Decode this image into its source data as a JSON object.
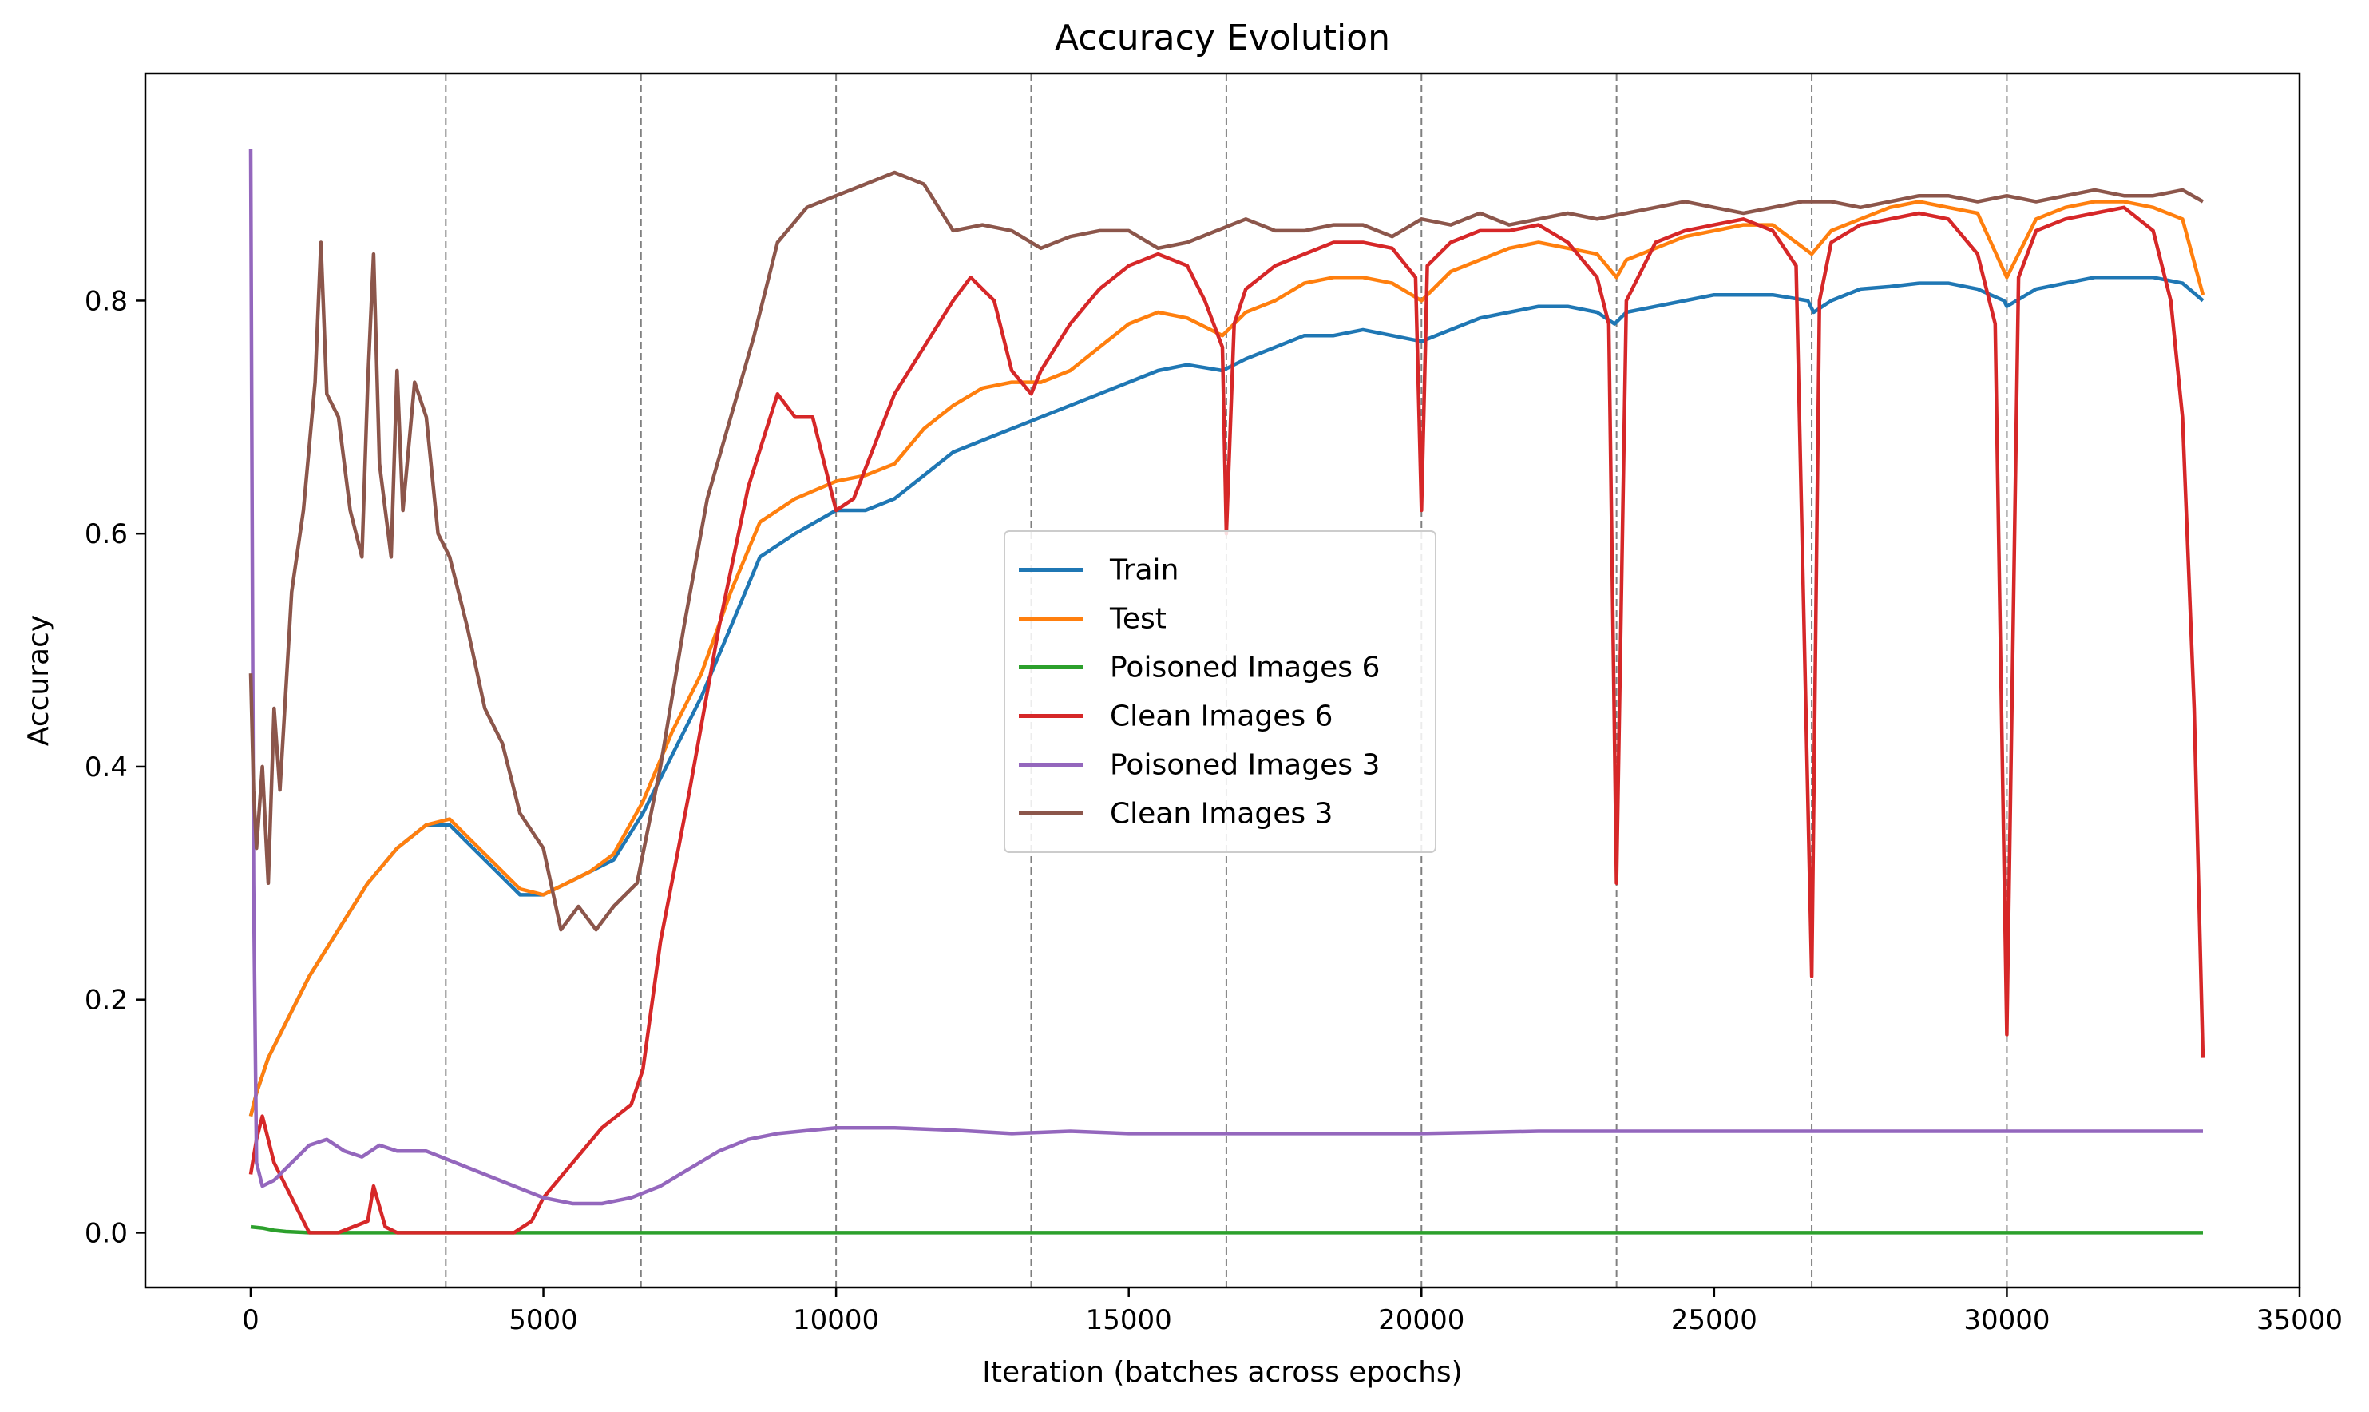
{
  "chart_data": {
    "type": "line",
    "title": "Accuracy Evolution",
    "xlabel": "Iteration (batches across epochs)",
    "ylabel": "Accuracy",
    "xlim": [
      -1800,
      35000
    ],
    "ylim": [
      -0.047,
      0.995
    ],
    "xticks": [
      0,
      5000,
      10000,
      15000,
      20000,
      25000,
      30000,
      35000
    ],
    "yticks": [
      0.0,
      0.2,
      0.4,
      0.6,
      0.8
    ],
    "xtick_labels": [
      "0",
      "5000",
      "10000",
      "15000",
      "20000",
      "25000",
      "30000",
      "35000"
    ],
    "ytick_labels": [
      "0.0",
      "0.2",
      "0.4",
      "0.6",
      "0.8"
    ],
    "epoch_boundaries": [
      3333,
      6667,
      10000,
      13333,
      16667,
      20000,
      23333,
      26667,
      30000
    ],
    "grid": false,
    "legend_position": "center",
    "series": [
      {
        "name": "Train",
        "color": "#1f77b4",
        "x": [
          0,
          100,
          300,
          600,
          1000,
          1500,
          2000,
          2500,
          3000,
          3400,
          3800,
          4200,
          4600,
          5000,
          5400,
          5800,
          6200,
          6700,
          7200,
          7700,
          8200,
          8700,
          9300,
          10000,
          10500,
          11000,
          11500,
          12000,
          12500,
          13000,
          13500,
          14000,
          14500,
          15000,
          15500,
          16000,
          16600,
          17000,
          17500,
          18000,
          18500,
          19000,
          19500,
          20000,
          20500,
          21000,
          21500,
          22000,
          22500,
          23000,
          23300,
          23500,
          24000,
          24500,
          25000,
          25500,
          26000,
          26600,
          26700,
          27000,
          27500,
          28000,
          28500,
          29000,
          29500,
          29950,
          30000,
          30500,
          31000,
          31500,
          32000,
          32500,
          33000,
          33350
        ],
        "y": [
          0.1,
          0.12,
          0.15,
          0.18,
          0.22,
          0.26,
          0.3,
          0.33,
          0.35,
          0.35,
          0.33,
          0.31,
          0.29,
          0.29,
          0.3,
          0.31,
          0.32,
          0.36,
          0.41,
          0.46,
          0.52,
          0.58,
          0.6,
          0.62,
          0.62,
          0.63,
          0.65,
          0.67,
          0.68,
          0.69,
          0.7,
          0.71,
          0.72,
          0.73,
          0.74,
          0.745,
          0.74,
          0.75,
          0.76,
          0.77,
          0.77,
          0.775,
          0.77,
          0.765,
          0.775,
          0.785,
          0.79,
          0.795,
          0.795,
          0.79,
          0.78,
          0.79,
          0.795,
          0.8,
          0.805,
          0.805,
          0.805,
          0.8,
          0.79,
          0.8,
          0.81,
          0.812,
          0.815,
          0.815,
          0.81,
          0.8,
          0.795,
          0.81,
          0.815,
          0.82,
          0.82,
          0.82,
          0.815,
          0.8
        ]
      },
      {
        "name": "Test",
        "color": "#ff7f0e",
        "x": [
          0,
          100,
          300,
          600,
          1000,
          1500,
          2000,
          2500,
          3000,
          3400,
          3800,
          4200,
          4600,
          5000,
          5400,
          5800,
          6200,
          6700,
          7200,
          7700,
          8200,
          8700,
          9300,
          10000,
          10500,
          11000,
          11500,
          12000,
          12500,
          13000,
          13333,
          13500,
          14000,
          14500,
          15000,
          15500,
          16000,
          16600,
          17000,
          17500,
          18000,
          18500,
          19000,
          19500,
          20000,
          20500,
          21000,
          21500,
          22000,
          22500,
          23000,
          23333,
          23500,
          24000,
          24500,
          25000,
          25500,
          26000,
          26667,
          27000,
          27500,
          28000,
          28500,
          29000,
          29500,
          30000,
          30500,
          31000,
          31500,
          32000,
          32500,
          33000,
          33350
        ],
        "y": [
          0.1,
          0.12,
          0.15,
          0.18,
          0.22,
          0.26,
          0.3,
          0.33,
          0.35,
          0.355,
          0.335,
          0.315,
          0.295,
          0.29,
          0.3,
          0.31,
          0.325,
          0.37,
          0.43,
          0.48,
          0.55,
          0.61,
          0.63,
          0.645,
          0.65,
          0.66,
          0.69,
          0.71,
          0.725,
          0.73,
          0.73,
          0.73,
          0.74,
          0.76,
          0.78,
          0.79,
          0.785,
          0.77,
          0.79,
          0.8,
          0.815,
          0.82,
          0.82,
          0.815,
          0.8,
          0.825,
          0.835,
          0.845,
          0.85,
          0.845,
          0.84,
          0.82,
          0.835,
          0.845,
          0.855,
          0.86,
          0.865,
          0.865,
          0.84,
          0.86,
          0.87,
          0.88,
          0.885,
          0.88,
          0.875,
          0.82,
          0.87,
          0.88,
          0.885,
          0.885,
          0.88,
          0.87,
          0.805
        ]
      },
      {
        "name": "Poisoned Images 6",
        "color": "#2ca02c",
        "x": [
          0,
          200,
          400,
          600,
          1000,
          5000,
          10000,
          15000,
          20000,
          25000,
          30000,
          33350
        ],
        "y": [
          0.005,
          0.004,
          0.002,
          0.001,
          0.0,
          0.0,
          0.0,
          0.0,
          0.0,
          0.0,
          0.0,
          0.0
        ]
      },
      {
        "name": "Clean Images 6",
        "color": "#d62728",
        "x": [
          0,
          100,
          200,
          400,
          600,
          800,
          1000,
          1500,
          2000,
          2100,
          2300,
          2500,
          2700,
          3000,
          4000,
          4500,
          4800,
          5000,
          5500,
          6000,
          6500,
          6700,
          7000,
          7500,
          8000,
          8500,
          9000,
          9300,
          9600,
          10000,
          10300,
          11000,
          11500,
          12000,
          12300,
          12700,
          13000,
          13333,
          13500,
          14000,
          14500,
          15000,
          15500,
          16000,
          16300,
          16600,
          16667,
          16800,
          17000,
          17500,
          18000,
          18500,
          19000,
          19500,
          19900,
          20000,
          20100,
          20500,
          21000,
          21500,
          22000,
          22500,
          23000,
          23200,
          23333,
          23500,
          24000,
          24500,
          25000,
          25500,
          26000,
          26400,
          26667,
          26800,
          27000,
          27500,
          28000,
          28500,
          29000,
          29500,
          29800,
          30000,
          30200,
          30500,
          31000,
          31500,
          32000,
          32500,
          32800,
          33000,
          33200,
          33350
        ],
        "y": [
          0.05,
          0.08,
          0.1,
          0.06,
          0.04,
          0.02,
          0.0,
          0.0,
          0.01,
          0.04,
          0.005,
          0.0,
          0.0,
          0.0,
          0.0,
          0.0,
          0.01,
          0.03,
          0.06,
          0.09,
          0.11,
          0.14,
          0.25,
          0.38,
          0.52,
          0.64,
          0.72,
          0.7,
          0.7,
          0.62,
          0.63,
          0.72,
          0.76,
          0.8,
          0.82,
          0.8,
          0.74,
          0.72,
          0.74,
          0.78,
          0.81,
          0.83,
          0.84,
          0.83,
          0.8,
          0.76,
          0.6,
          0.78,
          0.81,
          0.83,
          0.84,
          0.85,
          0.85,
          0.845,
          0.82,
          0.62,
          0.83,
          0.85,
          0.86,
          0.86,
          0.865,
          0.85,
          0.82,
          0.78,
          0.3,
          0.8,
          0.85,
          0.86,
          0.865,
          0.87,
          0.86,
          0.83,
          0.22,
          0.8,
          0.85,
          0.865,
          0.87,
          0.875,
          0.87,
          0.84,
          0.78,
          0.17,
          0.82,
          0.86,
          0.87,
          0.875,
          0.88,
          0.86,
          0.8,
          0.7,
          0.45,
          0.15
        ]
      },
      {
        "name": "Poisoned Images 3",
        "color": "#9467bd",
        "x": [
          0,
          50,
          100,
          200,
          400,
          700,
          1000,
          1300,
          1600,
          1900,
          2200,
          2500,
          3000,
          3500,
          4000,
          4500,
          5000,
          5500,
          6000,
          6500,
          7000,
          7500,
          8000,
          8500,
          9000,
          10000,
          11000,
          12000,
          13000,
          14000,
          15000,
          16000,
          17000,
          18000,
          19000,
          20000,
          21000,
          22000,
          23000,
          24000,
          25000,
          26000,
          27000,
          28000,
          29000,
          30000,
          31000,
          32000,
          33000,
          33350
        ],
        "y": [
          0.93,
          0.3,
          0.06,
          0.04,
          0.045,
          0.06,
          0.075,
          0.08,
          0.07,
          0.065,
          0.075,
          0.07,
          0.07,
          0.06,
          0.05,
          0.04,
          0.03,
          0.025,
          0.025,
          0.03,
          0.04,
          0.055,
          0.07,
          0.08,
          0.085,
          0.09,
          0.09,
          0.088,
          0.085,
          0.087,
          0.085,
          0.085,
          0.085,
          0.085,
          0.085,
          0.085,
          0.086,
          0.087,
          0.087,
          0.087,
          0.087,
          0.087,
          0.087,
          0.087,
          0.087,
          0.087,
          0.087,
          0.087,
          0.087,
          0.087
        ]
      },
      {
        "name": "Clean Images 3",
        "color": "#8c564b",
        "x": [
          0,
          50,
          100,
          200,
          300,
          400,
          500,
          700,
          900,
          1100,
          1200,
          1300,
          1500,
          1700,
          1900,
          2000,
          2100,
          2200,
          2400,
          2500,
          2600,
          2800,
          3000,
          3200,
          3400,
          3700,
          4000,
          4300,
          4600,
          5000,
          5300,
          5600,
          5900,
          6200,
          6600,
          7000,
          7400,
          7800,
          8200,
          8600,
          9000,
          9500,
          10000,
          10500,
          11000,
          11500,
          12000,
          12500,
          13000,
          13500,
          14000,
          14500,
          15000,
          15500,
          16000,
          16500,
          17000,
          17500,
          18000,
          18500,
          19000,
          19500,
          20000,
          20500,
          21000,
          21500,
          22000,
          22500,
          23000,
          23500,
          24000,
          24500,
          25000,
          25500,
          26000,
          26500,
          27000,
          27500,
          28000,
          28500,
          29000,
          29500,
          30000,
          30500,
          31000,
          31500,
          32000,
          32500,
          33000,
          33350
        ],
        "y": [
          0.48,
          0.38,
          0.33,
          0.4,
          0.3,
          0.45,
          0.38,
          0.55,
          0.62,
          0.73,
          0.85,
          0.72,
          0.7,
          0.62,
          0.58,
          0.73,
          0.84,
          0.66,
          0.58,
          0.74,
          0.62,
          0.73,
          0.7,
          0.6,
          0.58,
          0.52,
          0.45,
          0.42,
          0.36,
          0.33,
          0.26,
          0.28,
          0.26,
          0.28,
          0.3,
          0.4,
          0.52,
          0.63,
          0.7,
          0.77,
          0.85,
          0.88,
          0.89,
          0.9,
          0.91,
          0.9,
          0.86,
          0.865,
          0.86,
          0.845,
          0.855,
          0.86,
          0.86,
          0.845,
          0.85,
          0.86,
          0.87,
          0.86,
          0.86,
          0.865,
          0.865,
          0.855,
          0.87,
          0.865,
          0.875,
          0.865,
          0.87,
          0.875,
          0.87,
          0.875,
          0.88,
          0.885,
          0.88,
          0.875,
          0.88,
          0.885,
          0.885,
          0.88,
          0.885,
          0.89,
          0.89,
          0.885,
          0.89,
          0.885,
          0.89,
          0.895,
          0.89,
          0.89,
          0.895,
          0.885
        ]
      }
    ]
  }
}
